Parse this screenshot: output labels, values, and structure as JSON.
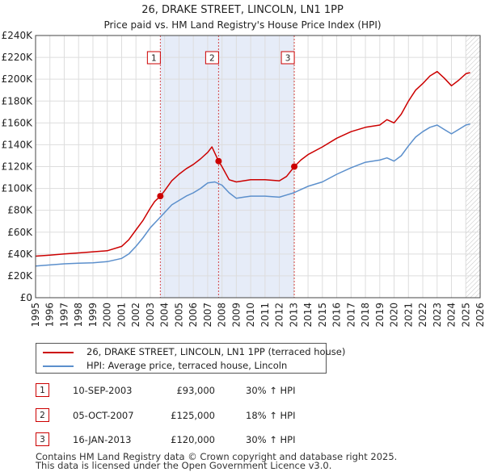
{
  "chart_data": {
    "type": "line",
    "title": "26, DRAKE STREET, LINCOLN, LN1 1PP",
    "subtitle": "Price paid vs. HM Land Registry's House Price Index (HPI)",
    "x_range": [
      1995,
      2026
    ],
    "ylim": [
      0,
      240000
    ],
    "y_ticks": [
      {
        "value": 0,
        "label": "£0"
      },
      {
        "value": 20000,
        "label": "£20K"
      },
      {
        "value": 40000,
        "label": "£40K"
      },
      {
        "value": 60000,
        "label": "£60K"
      },
      {
        "value": 80000,
        "label": "£80K"
      },
      {
        "value": 100000,
        "label": "£100K"
      },
      {
        "value": 120000,
        "label": "£120K"
      },
      {
        "value": 140000,
        "label": "£140K"
      },
      {
        "value": 160000,
        "label": "£160K"
      },
      {
        "value": 180000,
        "label": "£180K"
      },
      {
        "value": 200000,
        "label": "£200K"
      },
      {
        "value": 220000,
        "label": "£220K"
      },
      {
        "value": 240000,
        "label": "£240K"
      }
    ],
    "x_ticks": [
      "1995",
      "1996",
      "1997",
      "1998",
      "1999",
      "2000",
      "2001",
      "2002",
      "2003",
      "2004",
      "2005",
      "2006",
      "2007",
      "2008",
      "2009",
      "2010",
      "2011",
      "2012",
      "2013",
      "2014",
      "2015",
      "2016",
      "2017",
      "2018",
      "2019",
      "2020",
      "2021",
      "2022",
      "2023",
      "2024",
      "2025",
      "2026"
    ],
    "grid": true,
    "future_hatch_from": 2025.0,
    "series": [
      {
        "name": "26, DRAKE STREET, LINCOLN, LN1 1PP (terraced house)",
        "color": "#cc0000",
        "x": [
          1995.0,
          1996.0,
          1997.0,
          1998.0,
          1999.0,
          2000.0,
          2001.0,
          2001.5,
          2002.0,
          2002.5,
          2003.0,
          2003.3,
          2003.7,
          2004.0,
          2004.5,
          2005.0,
          2005.5,
          2006.0,
          2006.5,
          2007.0,
          2007.3,
          2007.76,
          2008.0,
          2008.5,
          2009.0,
          2009.5,
          2010.0,
          2011.0,
          2012.0,
          2012.5,
          2013.04,
          2013.5,
          2014.0,
          2015.0,
          2016.0,
          2017.0,
          2018.0,
          2019.0,
          2019.5,
          2020.0,
          2020.5,
          2021.0,
          2021.5,
          2022.0,
          2022.5,
          2023.0,
          2023.5,
          2024.0,
          2024.5,
          2025.0,
          2025.3
        ],
        "y": [
          38000,
          39000,
          40000,
          41000,
          42000,
          43000,
          47000,
          53000,
          62000,
          71000,
          82000,
          88000,
          93000,
          98000,
          107000,
          113000,
          118000,
          122000,
          127000,
          133000,
          138000,
          125000,
          120000,
          108000,
          106000,
          107000,
          108000,
          108000,
          107000,
          111000,
          120000,
          126000,
          131000,
          138000,
          146000,
          152000,
          156000,
          158000,
          163000,
          160000,
          168000,
          180000,
          190000,
          196000,
          203000,
          207000,
          201000,
          194000,
          199000,
          205000,
          206000
        ]
      },
      {
        "name": "HPI: Average price, terraced house, Lincoln",
        "color": "#5b8fcc",
        "x": [
          1995.0,
          1996.0,
          1997.0,
          1998.0,
          1999.0,
          2000.0,
          2001.0,
          2001.5,
          2002.0,
          2002.5,
          2003.0,
          2003.5,
          2004.0,
          2004.5,
          2005.0,
          2005.5,
          2006.0,
          2006.5,
          2007.0,
          2007.5,
          2008.0,
          2008.5,
          2009.0,
          2009.5,
          2010.0,
          2011.0,
          2012.0,
          2012.5,
          2013.0,
          2013.5,
          2014.0,
          2015.0,
          2016.0,
          2017.0,
          2018.0,
          2019.0,
          2019.5,
          2020.0,
          2020.5,
          2021.0,
          2021.5,
          2022.0,
          2022.5,
          2023.0,
          2023.5,
          2024.0,
          2024.5,
          2025.0,
          2025.3
        ],
        "y": [
          29000,
          30000,
          31000,
          31500,
          32000,
          33000,
          36000,
          40000,
          47000,
          55000,
          64000,
          71000,
          78000,
          85000,
          89000,
          93000,
          96000,
          100000,
          105000,
          106000,
          103000,
          96000,
          91000,
          92000,
          93000,
          93000,
          92000,
          94000,
          96000,
          99000,
          102000,
          106000,
          113000,
          119000,
          124000,
          126000,
          128000,
          125000,
          130000,
          139000,
          147000,
          152000,
          156000,
          158000,
          154000,
          150000,
          154000,
          158000,
          159000
        ]
      }
    ],
    "sale_points": [
      {
        "label": "1",
        "x": 2003.7,
        "y": 93000
      },
      {
        "label": "2",
        "x": 2007.76,
        "y": 125000
      },
      {
        "label": "3",
        "x": 2013.04,
        "y": 120000
      }
    ]
  },
  "legend": {
    "property_label": "26, DRAKE STREET, LINCOLN, LN1 1PP (terraced house)",
    "hpi_label": "HPI: Average price, terraced house, Lincoln"
  },
  "transactions": [
    {
      "num": "1",
      "date": "10-SEP-2003",
      "price": "£93,000",
      "hpi": "30% ↑ HPI"
    },
    {
      "num": "2",
      "date": "05-OCT-2007",
      "price": "£125,000",
      "hpi": "18% ↑ HPI"
    },
    {
      "num": "3",
      "date": "16-JAN-2013",
      "price": "£120,000",
      "hpi": "30% ↑ HPI"
    }
  ],
  "footer": {
    "line1": "Contains HM Land Registry data © Crown copyright and database right 2025.",
    "line2": "This data is licensed under the Open Government Licence v3.0."
  }
}
